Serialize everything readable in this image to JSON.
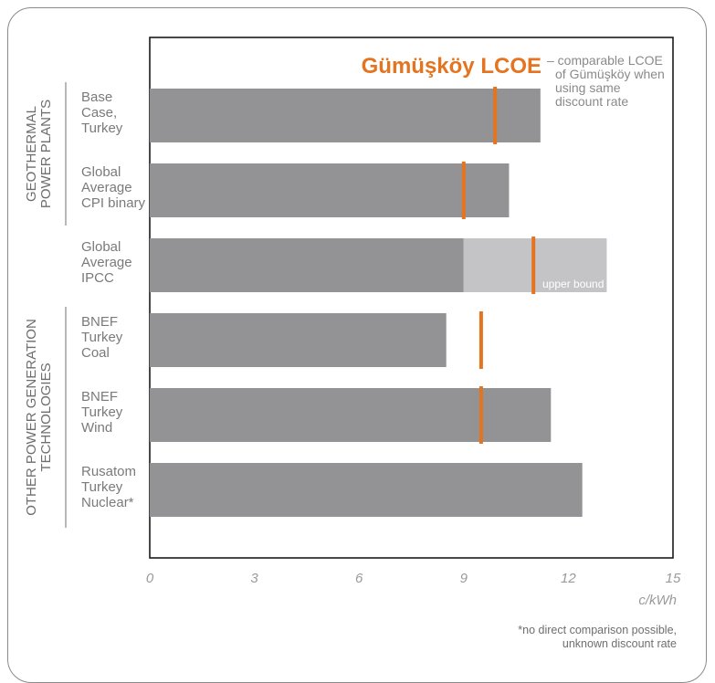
{
  "chart_data": {
    "type": "bar",
    "orientation": "horizontal",
    "title": "Gümüşköy LCOE",
    "legend_note": [
      "– comparable LCOE",
      "of Gümüşköy when",
      "using same",
      "discount rate"
    ],
    "xlabel": "c/kWh",
    "xlim": [
      0,
      15
    ],
    "xticks": [
      0,
      3,
      6,
      9,
      12,
      15
    ],
    "grid": false,
    "groups": [
      {
        "label": [
          "GEOTHERMAL",
          "POWER PLANTS"
        ],
        "categories": [
          0,
          1,
          2
        ]
      },
      {
        "label": [
          "OTHER POWER GENERATION",
          "TECHNOLOGIES"
        ],
        "categories": [
          3,
          4,
          5
        ]
      }
    ],
    "categories": [
      [
        "Base",
        "Case,",
        "Turkey"
      ],
      [
        "Global",
        "Average",
        "CPI binary"
      ],
      [
        "Global",
        "Average",
        "IPCC"
      ],
      [
        "BNEF",
        "Turkey",
        "Coal"
      ],
      [
        "BNEF",
        "Turkey",
        "Wind"
      ],
      [
        "Rusatom",
        "Turkey",
        "Nuclear*"
      ]
    ],
    "values": [
      11.2,
      10.3,
      9.0,
      8.5,
      11.5,
      12.4
    ],
    "upper_bound": [
      null,
      null,
      13.1,
      null,
      null,
      null
    ],
    "upper_bound_label": "upper bound",
    "gumuskoy_lcoe": [
      9.9,
      9.0,
      11.0,
      9.5,
      9.5,
      null
    ],
    "footnote": [
      "*no direct comparison possible,",
      "unknown discount rate"
    ],
    "colors": {
      "bar": "#939395",
      "upper": "#c4c4c6",
      "marker": "#e4741f",
      "title": "#e4741f"
    }
  }
}
